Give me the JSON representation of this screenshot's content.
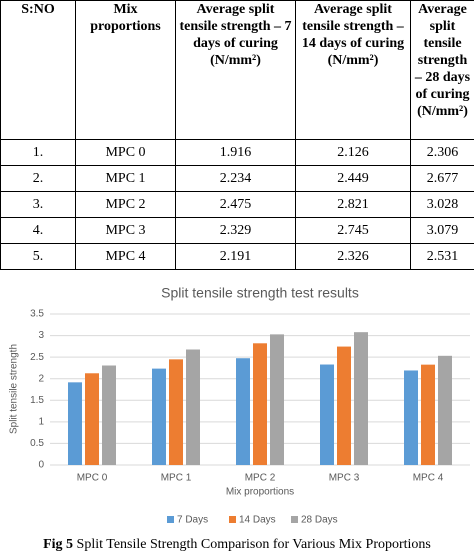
{
  "table": {
    "header": [
      "S:NO",
      "Mix proportions",
      "Average split tensile strength – 7 days of curing (N/mm²)",
      "Average split tensile strength – 14 days of curing (N/mm²)",
      "Average split tensile strength – 28 days of curing (N/mm²)"
    ],
    "rows": [
      [
        "1.",
        "MPC 0",
        "1.916",
        "2.126",
        "2.306"
      ],
      [
        "2.",
        "MPC 1",
        "2.234",
        "2.449",
        "2.677"
      ],
      [
        "3.",
        "MPC 2",
        "2.475",
        "2.821",
        "3.028"
      ],
      [
        "4.",
        "MPC 3",
        "2.329",
        "2.745",
        "3.079"
      ],
      [
        "5.",
        "MPC 4",
        "2.191",
        "2.326",
        "2.531"
      ]
    ]
  },
  "chart_data": {
    "type": "bar",
    "title": "Split tensile strength test results",
    "x_label": "Mix proportions",
    "y_label": "Split tensile strength",
    "categories": [
      "MPC 0",
      "MPC 1",
      "MPC 2",
      "MPC 3",
      "MPC 4"
    ],
    "series": [
      {
        "name": "7 Days",
        "color": "#5b9bd5",
        "values": [
          1.916,
          2.234,
          2.475,
          2.329,
          2.191
        ]
      },
      {
        "name": "14 Days",
        "color": "#ed7d31",
        "values": [
          2.126,
          2.449,
          2.821,
          2.745,
          2.326
        ]
      },
      {
        "name": "28 Days",
        "color": "#a5a5a5",
        "values": [
          2.306,
          2.677,
          3.028,
          3.079,
          2.531
        ]
      }
    ],
    "ylim": [
      0,
      3.5
    ],
    "yticks": [
      0,
      0.5,
      1,
      1.5,
      2,
      2.5,
      3,
      3.5
    ],
    "grid": true,
    "legend": "bottom"
  },
  "caption": {
    "label": "Fig 5",
    "text": "Split Tensile Strength Comparison for Various Mix Proportions"
  }
}
